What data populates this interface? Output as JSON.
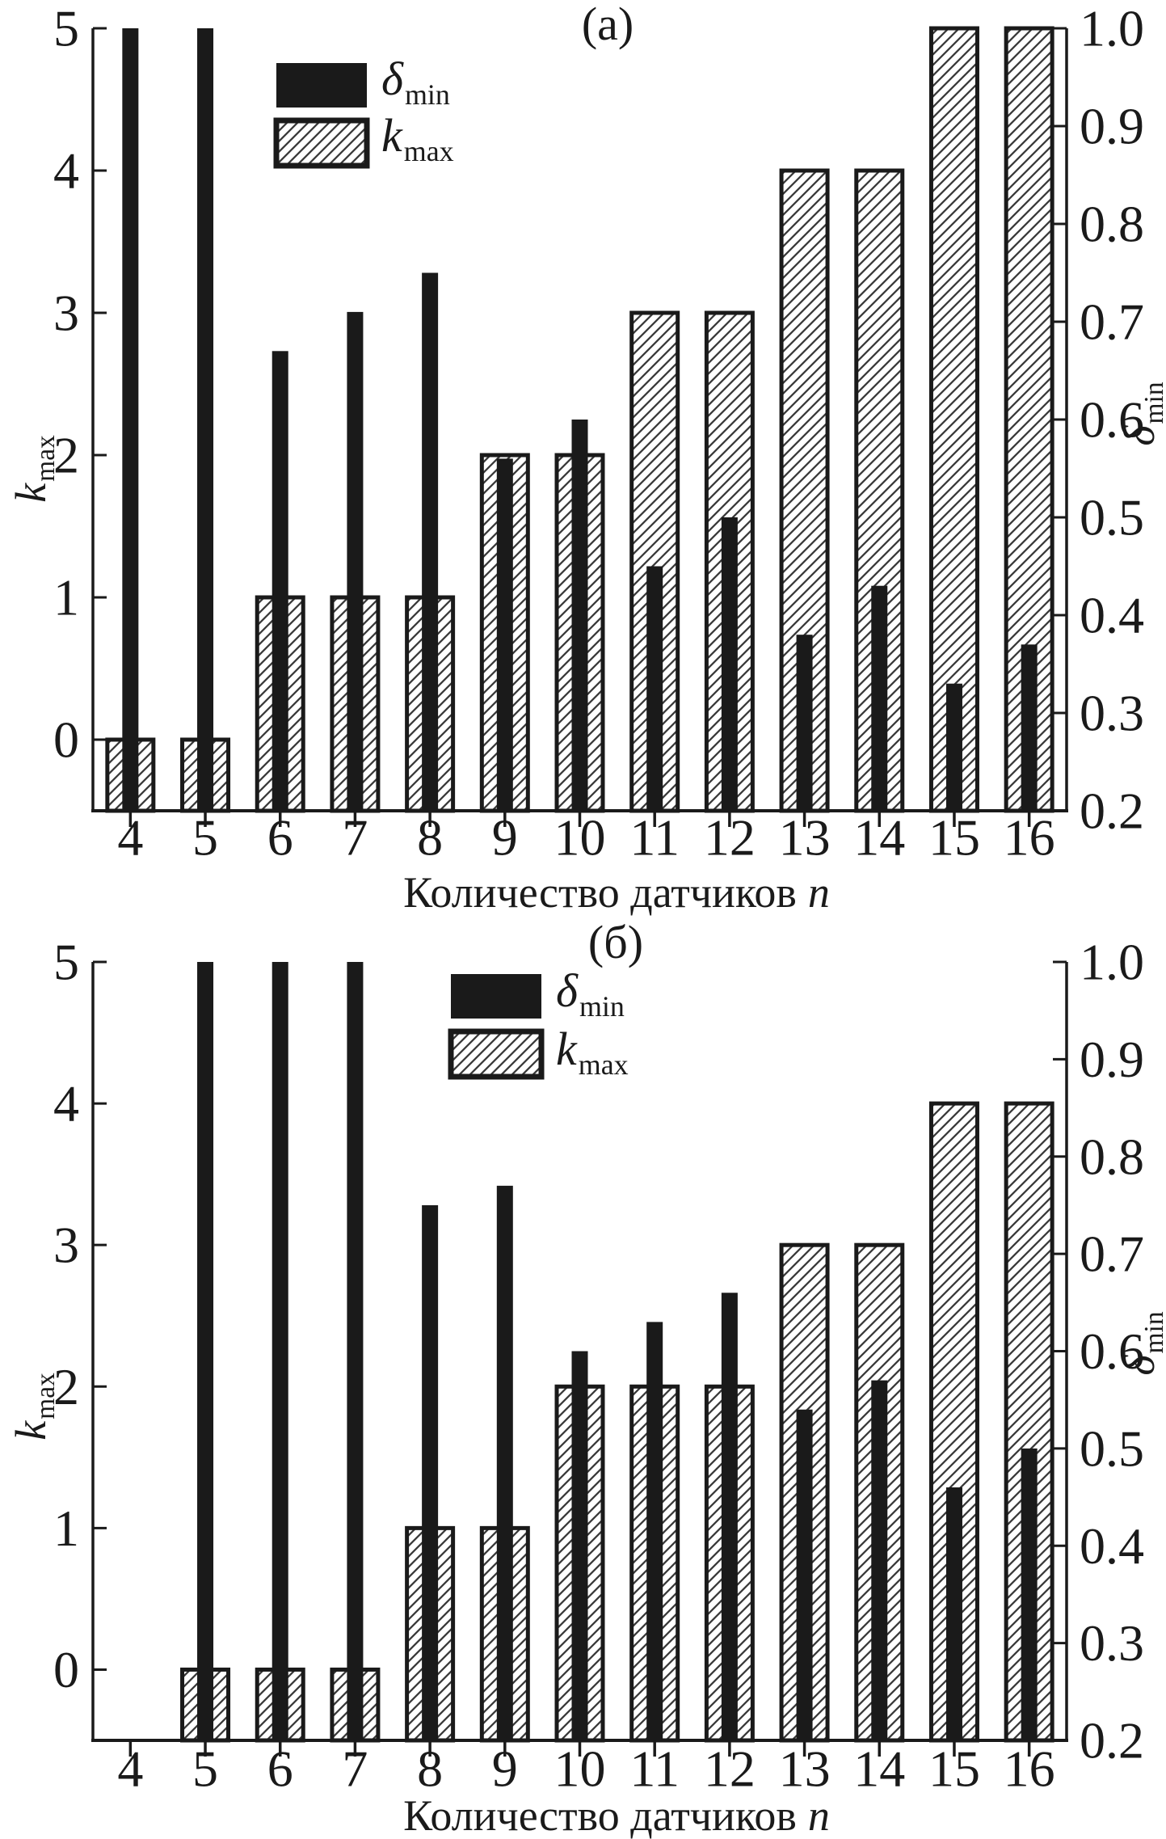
{
  "colors": {
    "ink": "#1a1a1a",
    "hatch_line": "#3a3a3a",
    "background": "#ffffff"
  },
  "chart_data": [
    {
      "type": "bar",
      "title": "(а)",
      "categories": [
        4,
        5,
        6,
        7,
        8,
        9,
        10,
        11,
        12,
        13,
        14,
        15,
        16
      ],
      "series": [
        {
          "name": "δ_min",
          "axis": "right",
          "style": "solid-black",
          "values": [
            1.0,
            1.0,
            0.67,
            0.71,
            0.75,
            0.56,
            0.6,
            0.45,
            0.5,
            0.38,
            0.43,
            0.33,
            0.37
          ]
        },
        {
          "name": "k_max",
          "axis": "left",
          "style": "hatched",
          "values": [
            0,
            0,
            1,
            1,
            1,
            2,
            2,
            3,
            3,
            4,
            4,
            5,
            5
          ]
        }
      ],
      "xlabel": "Количество датчиков n",
      "xlabel_text": "Количество датчиков",
      "xlabel_var": "n",
      "ylabel_left": "k_max",
      "ylabel_left_symbol": "k",
      "ylabel_left_sub": "max",
      "ylabel_right": "δ_min",
      "ylabel_right_symbol": "δ",
      "ylabel_right_sub": "min",
      "ylim_left": [
        0,
        5
      ],
      "ylim_right": [
        0.2,
        1.0
      ],
      "left_tick_values": [
        0,
        1,
        2,
        3,
        4,
        5
      ],
      "left_tick_labels": [
        "0",
        "1",
        "2",
        "3",
        "4",
        "5"
      ],
      "right_tick_values": [
        0.2,
        0.3,
        0.4,
        0.5,
        0.6,
        0.7,
        0.8,
        0.9,
        1.0
      ],
      "right_tick_labels": [
        "0.2",
        "0.3",
        "0.4",
        "0.5",
        "0.6",
        "0.7",
        "0.8",
        "0.9",
        "1.0"
      ],
      "grid": false,
      "legend_position": "upper-left",
      "legend": [
        {
          "symbol": "δ",
          "sub": "min",
          "series": "δ_min",
          "swatch": "solid"
        },
        {
          "symbol": "k",
          "sub": "max",
          "series": "k_max",
          "swatch": "hatched"
        }
      ]
    },
    {
      "type": "bar",
      "title": "(б)",
      "categories": [
        4,
        5,
        6,
        7,
        8,
        9,
        10,
        11,
        12,
        13,
        14,
        15,
        16
      ],
      "series": [
        {
          "name": "δ_min",
          "axis": "right",
          "style": "solid-black",
          "values": [
            null,
            1.0,
            1.0,
            1.0,
            0.75,
            0.77,
            0.6,
            0.63,
            0.66,
            0.54,
            0.57,
            0.46,
            0.5
          ]
        },
        {
          "name": "k_max",
          "axis": "left",
          "style": "hatched",
          "values": [
            null,
            0,
            0,
            0,
            1,
            1,
            2,
            2,
            2,
            3,
            3,
            4,
            4
          ]
        }
      ],
      "xlabel": "Количество датчиков n",
      "xlabel_text": "Количество датчиков",
      "xlabel_var": "n",
      "ylabel_left": "k_max",
      "ylabel_left_symbol": "k",
      "ylabel_left_sub": "max",
      "ylabel_right": "δ_min",
      "ylabel_right_symbol": "δ",
      "ylabel_right_sub": "min",
      "ylim_left": [
        0,
        5
      ],
      "ylim_right": [
        0.2,
        1.0
      ],
      "left_tick_values": [
        0,
        1,
        2,
        3,
        4,
        5
      ],
      "left_tick_labels": [
        "0",
        "1",
        "2",
        "3",
        "4",
        "5"
      ],
      "right_tick_values": [
        0.2,
        0.3,
        0.4,
        0.5,
        0.6,
        0.7,
        0.8,
        0.9,
        1.0
      ],
      "right_tick_labels": [
        "0.2",
        "0.3",
        "0.4",
        "0.5",
        "0.6",
        "0.7",
        "0.8",
        "0.9",
        "1.0"
      ],
      "grid": false,
      "legend_position": "upper-center",
      "legend": [
        {
          "symbol": "δ",
          "sub": "min",
          "series": "δ_min",
          "swatch": "solid"
        },
        {
          "symbol": "k",
          "sub": "max",
          "series": "k_max",
          "swatch": "hatched"
        }
      ]
    }
  ]
}
